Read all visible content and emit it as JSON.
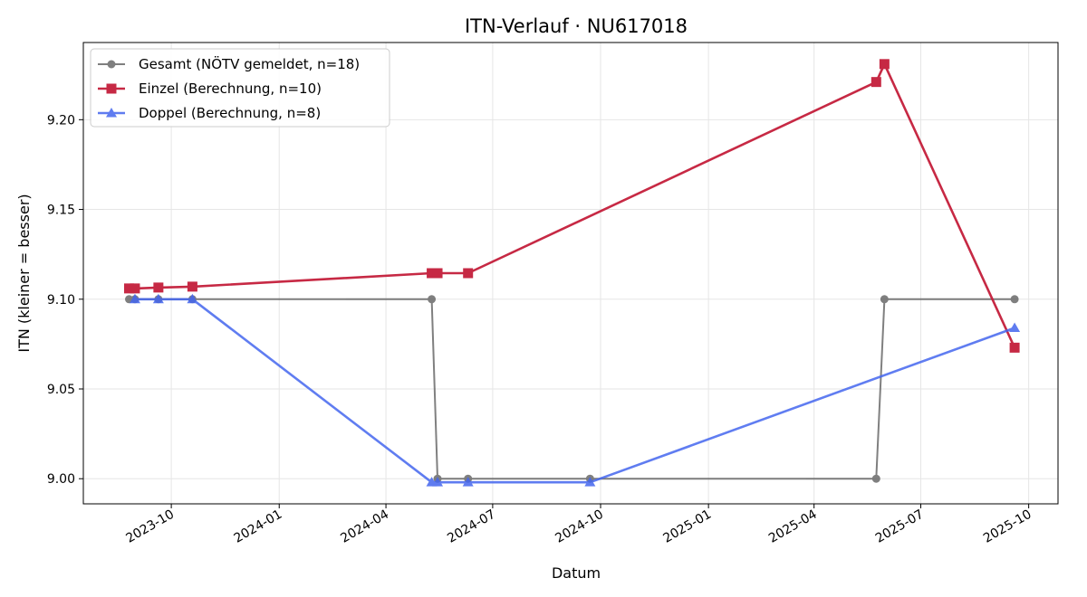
{
  "chart_data": {
    "type": "line",
    "title": "ITN-Verlauf · NU617018",
    "xlabel": "Datum",
    "ylabel": "ITN  (kleiner = besser)",
    "xlim": [
      "2023-07-18",
      "2025-10-26"
    ],
    "ylim": [
      8.986,
      9.243
    ],
    "x_ticks": [
      "2023-10",
      "2024-01",
      "2024-04",
      "2024-07",
      "2024-10",
      "2025-01",
      "2025-04",
      "2025-07",
      "2025-10"
    ],
    "y_ticks": [
      "9.00",
      "9.05",
      "9.10",
      "9.15",
      "9.20"
    ],
    "grid": true,
    "legend_position": "upper left",
    "series": [
      {
        "name": "Gesamt (NÖTV gemeldet, n=18)",
        "color": "#555555",
        "marker": "circle",
        "points": [
          {
            "x": "2023-08-26",
            "y": 9.1
          },
          {
            "x": "2023-08-31",
            "y": 9.1
          },
          {
            "x": "2023-09-20",
            "y": 9.1
          },
          {
            "x": "2023-10-19",
            "y": 9.1
          },
          {
            "x": "2024-05-10",
            "y": 9.1
          },
          {
            "x": "2024-05-15",
            "y": 9.0
          },
          {
            "x": "2024-06-10",
            "y": 9.0
          },
          {
            "x": "2024-09-22",
            "y": 9.0
          },
          {
            "x": "2025-05-24",
            "y": 9.0
          },
          {
            "x": "2025-05-31",
            "y": 9.1
          },
          {
            "x": "2025-09-19",
            "y": 9.1
          }
        ]
      },
      {
        "name": "Einzel (Berechnung, n=10)",
        "color": "#c41e3a",
        "marker": "square",
        "points": [
          {
            "x": "2023-08-26",
            "y": 9.106
          },
          {
            "x": "2023-08-31",
            "y": 9.106
          },
          {
            "x": "2023-09-20",
            "y": 9.1065
          },
          {
            "x": "2023-10-19",
            "y": 9.107
          },
          {
            "x": "2024-05-10",
            "y": 9.1145
          },
          {
            "x": "2024-05-15",
            "y": 9.1145
          },
          {
            "x": "2024-06-10",
            "y": 9.1145
          },
          {
            "x": "2025-05-24",
            "y": 9.221
          },
          {
            "x": "2025-05-31",
            "y": 9.231
          },
          {
            "x": "2025-09-19",
            "y": 9.073
          }
        ]
      },
      {
        "name": "Doppel (Berechnung, n=8)",
        "color": "#4466ee",
        "marker": "triangle",
        "points": [
          {
            "x": "2023-08-31",
            "y": 9.1
          },
          {
            "x": "2023-09-20",
            "y": 9.1
          },
          {
            "x": "2023-10-19",
            "y": 9.1
          },
          {
            "x": "2024-05-10",
            "y": 8.998
          },
          {
            "x": "2024-05-15",
            "y": 8.998
          },
          {
            "x": "2024-06-10",
            "y": 8.998
          },
          {
            "x": "2024-09-22",
            "y": 8.998
          },
          {
            "x": "2025-09-19",
            "y": 9.084
          }
        ]
      }
    ]
  }
}
